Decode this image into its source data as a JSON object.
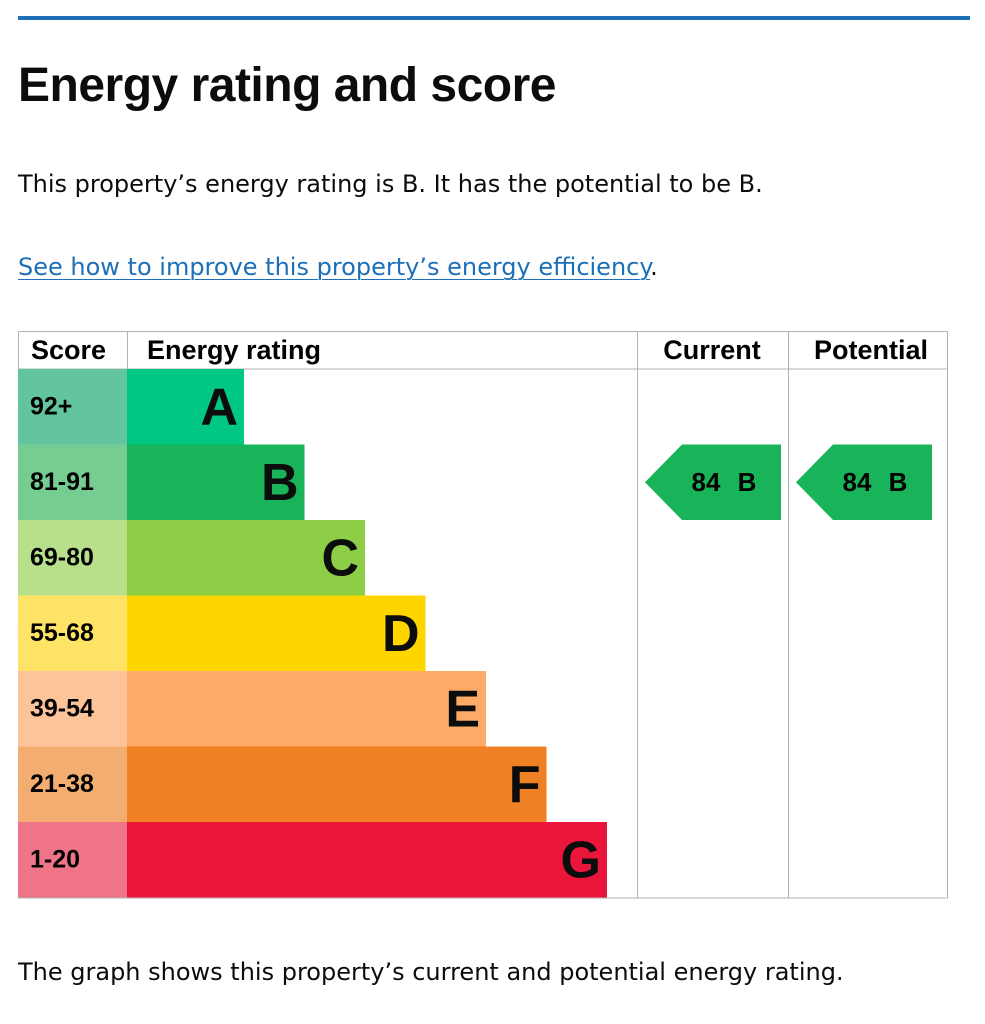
{
  "header": {
    "title": "Energy rating and score"
  },
  "intro": "This property’s energy rating is B. It has the potential to be B.",
  "link": {
    "text": "See how to improve this property’s energy efficiency",
    "after": "."
  },
  "table": {
    "headers": [
      "Score",
      "Energy rating",
      "Current",
      "Potential"
    ],
    "bands": [
      {
        "score": "92+",
        "rating": "A",
        "color": "#00c781",
        "score_color": "#63c5a0"
      },
      {
        "score": "81-91",
        "rating": "B",
        "color": "#19b459",
        "score_color": "#75cd92"
      },
      {
        "score": "69-80",
        "rating": "C",
        "color": "#8dce46",
        "score_color": "#b8e08a"
      },
      {
        "score": "55-68",
        "rating": "D",
        "color": "#ffd500",
        "score_color": "#ffe366"
      },
      {
        "score": "39-54",
        "rating": "E",
        "color": "#fcaa65",
        "score_color": "#fdc49a"
      },
      {
        "score": "21-38",
        "rating": "F",
        "color": "#ef8023",
        "score_color": "#f4ad70"
      },
      {
        "score": "1-20",
        "rating": "G",
        "color": "#e9153b",
        "score_color": "#f07488"
      }
    ],
    "current": {
      "score": 84,
      "rating": "B"
    },
    "potential": {
      "score": 84,
      "rating": "B"
    }
  },
  "footer": "The graph shows this property’s current and potential energy rating."
}
